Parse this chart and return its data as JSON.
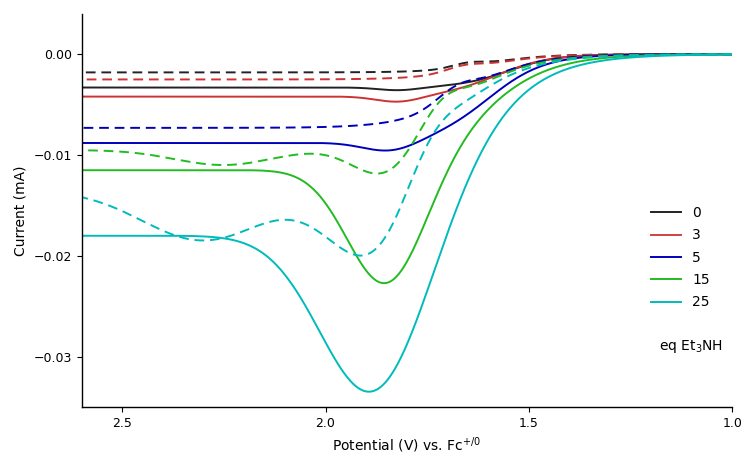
{
  "xlabel": "Potential (V) vs. Fc$^{+/0}$",
  "ylabel": "Current (mA)",
  "xlim": [
    2.6,
    1.0
  ],
  "ylim": [
    -0.035,
    0.004
  ],
  "yticks": [
    0.0,
    -0.01,
    -0.02,
    -0.03
  ],
  "xticks": [
    2.5,
    2.0,
    1.5,
    1.0
  ],
  "background_color": "#ffffff",
  "series": [
    {
      "label": "0",
      "color": "#222222",
      "lw": 1.4
    },
    {
      "label": "3",
      "color": "#cc4444",
      "lw": 1.4
    },
    {
      "label": "5",
      "color": "#0000bb",
      "lw": 1.4
    },
    {
      "label": "15",
      "color": "#22bb22",
      "lw": 1.4
    },
    {
      "label": "25",
      "color": "#00bbbb",
      "lw": 1.4
    }
  ],
  "legend_extra": "eq Et$_3$NH"
}
